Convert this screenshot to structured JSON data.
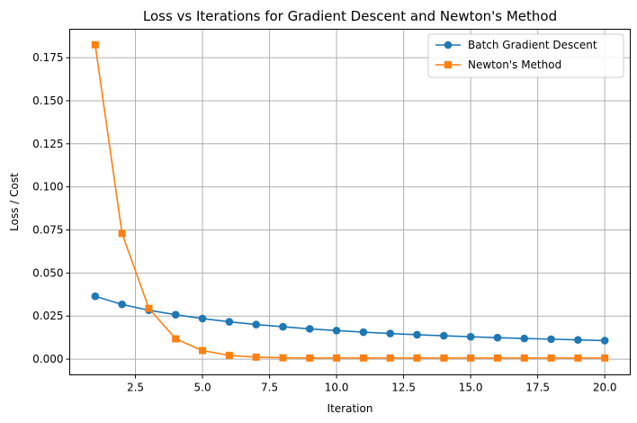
{
  "chart_data": {
    "type": "line",
    "title": "Loss vs Iterations for Gradient Descent and Newton's Method",
    "xlabel": "Iteration",
    "ylabel": "Loss / Cost",
    "xlim": [
      0.05,
      20.95
    ],
    "ylim": [
      -0.0091,
      0.1915
    ],
    "xticks": [
      2.5,
      5.0,
      7.5,
      10.0,
      12.5,
      15.0,
      17.5,
      20.0
    ],
    "xtick_labels": [
      "2.5",
      "5.0",
      "7.5",
      "10.0",
      "12.5",
      "15.0",
      "17.5",
      "20.0"
    ],
    "yticks": [
      0.0,
      0.025,
      0.05,
      0.075,
      0.1,
      0.125,
      0.15,
      0.175
    ],
    "ytick_labels": [
      "0.000",
      "0.025",
      "0.050",
      "0.075",
      "0.100",
      "0.125",
      "0.150",
      "0.175"
    ],
    "grid": true,
    "legend_position": "top-right",
    "x": [
      1,
      2,
      3,
      4,
      5,
      6,
      7,
      8,
      9,
      10,
      11,
      12,
      13,
      14,
      15,
      16,
      17,
      18,
      19,
      20
    ],
    "series": [
      {
        "name": "Batch Gradient Descent",
        "color": "#1f77b4",
        "marker": "circle",
        "values": [
          0.0365,
          0.0318,
          0.0284,
          0.0258,
          0.0236,
          0.0217,
          0.0201,
          0.0188,
          0.0176,
          0.0166,
          0.0157,
          0.0149,
          0.0142,
          0.0136,
          0.013,
          0.0125,
          0.012,
          0.0116,
          0.0112,
          0.0108
        ]
      },
      {
        "name": "Newton's Method",
        "color": "#ff7f0e",
        "marker": "square",
        "values": [
          0.1825,
          0.073,
          0.0295,
          0.0118,
          0.005,
          0.0022,
          0.0012,
          0.0008,
          0.0007,
          0.0007,
          0.0007,
          0.0007,
          0.0007,
          0.0007,
          0.0007,
          0.0007,
          0.0007,
          0.0007,
          0.0007,
          0.0007
        ]
      }
    ]
  }
}
